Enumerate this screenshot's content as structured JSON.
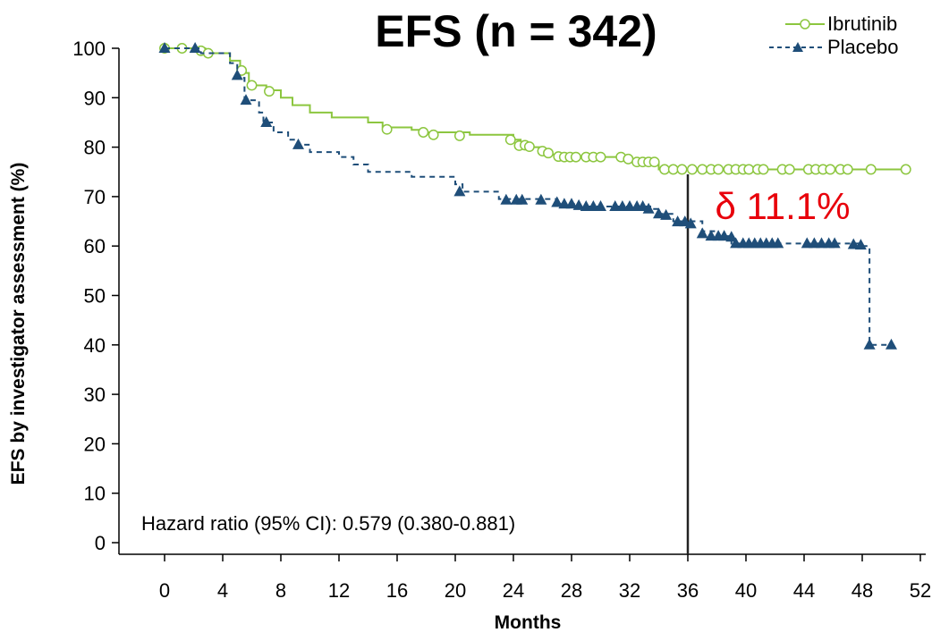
{
  "chart_data": {
    "type": "line",
    "title": "EFS (n = 342)",
    "xlabel": "Months",
    "ylabel": "EFS by investigator assessment (%)",
    "xlim": [
      0,
      52
    ],
    "ylim": [
      0,
      100
    ],
    "xticks": [
      0,
      4,
      8,
      12,
      16,
      20,
      24,
      28,
      32,
      36,
      40,
      44,
      48,
      52
    ],
    "yticks": [
      0,
      10,
      20,
      30,
      40,
      50,
      60,
      70,
      80,
      90,
      100
    ],
    "grid": false,
    "legend_position": "top-right",
    "colors": {
      "ibrutinib": "#8cc63f",
      "placebo": "#1f4e79",
      "delta": "#e8000b",
      "axis": "#000000"
    },
    "series": [
      {
        "name": "Ibrutinib",
        "style": "solid",
        "marker": "open-circle",
        "steps": [
          [
            0,
            100
          ],
          [
            2.8,
            99
          ],
          [
            4.5,
            97.5
          ],
          [
            5.2,
            95
          ],
          [
            5.8,
            92.5
          ],
          [
            7,
            91.5
          ],
          [
            8,
            90
          ],
          [
            8.8,
            88.5
          ],
          [
            10,
            87
          ],
          [
            11.5,
            86
          ],
          [
            14,
            85
          ],
          [
            15,
            84
          ],
          [
            17,
            83.5
          ],
          [
            18,
            83
          ],
          [
            21,
            82.5
          ],
          [
            24,
            81.5
          ],
          [
            24.5,
            81
          ],
          [
            25,
            80
          ],
          [
            26,
            79
          ],
          [
            26.5,
            78.5
          ],
          [
            27,
            78
          ],
          [
            31.5,
            77.5
          ],
          [
            32,
            77
          ],
          [
            34,
            75.5
          ],
          [
            51,
            75.5
          ]
        ],
        "censored": [
          [
            0,
            100
          ],
          [
            1.2,
            100
          ],
          [
            2.5,
            99.5
          ],
          [
            3,
            99
          ],
          [
            5.3,
            95.5
          ],
          [
            6,
            92.5
          ],
          [
            7.2,
            91.3
          ],
          [
            15.3,
            83.6
          ],
          [
            17.8,
            83
          ],
          [
            18.5,
            82.5
          ],
          [
            20.3,
            82.3
          ],
          [
            23.8,
            81.5
          ],
          [
            24.4,
            80.3
          ],
          [
            24.8,
            80.4
          ],
          [
            25.1,
            80.1
          ],
          [
            26,
            79.2
          ],
          [
            26.4,
            78.8
          ],
          [
            27.1,
            78.1
          ],
          [
            27.5,
            78
          ],
          [
            27.9,
            78
          ],
          [
            28.3,
            78
          ],
          [
            29,
            78
          ],
          [
            29.5,
            78
          ],
          [
            30,
            78
          ],
          [
            31.4,
            78
          ],
          [
            31.9,
            77.6
          ],
          [
            32.5,
            77
          ],
          [
            32.9,
            77
          ],
          [
            33.3,
            77
          ],
          [
            33.7,
            77
          ],
          [
            34.4,
            75.5
          ],
          [
            35,
            75.5
          ],
          [
            35.6,
            75.5
          ],
          [
            36.3,
            75.5
          ],
          [
            37,
            75.5
          ],
          [
            37.6,
            75.5
          ],
          [
            38.1,
            75.5
          ],
          [
            38.8,
            75.5
          ],
          [
            39.3,
            75.5
          ],
          [
            39.8,
            75.5
          ],
          [
            40.2,
            75.5
          ],
          [
            40.8,
            75.5
          ],
          [
            41.2,
            75.5
          ],
          [
            42.5,
            75.5
          ],
          [
            43,
            75.5
          ],
          [
            44.3,
            75.5
          ],
          [
            44.8,
            75.5
          ],
          [
            45.3,
            75.5
          ],
          [
            45.8,
            75.5
          ],
          [
            46.5,
            75.5
          ],
          [
            47,
            75.5
          ],
          [
            48.6,
            75.5
          ],
          [
            51,
            75.5
          ]
        ]
      },
      {
        "name": "Placebo",
        "style": "dashed",
        "marker": "filled-triangle",
        "steps": [
          [
            0,
            100
          ],
          [
            2.5,
            99
          ],
          [
            4.5,
            97
          ],
          [
            5,
            94
          ],
          [
            5.5,
            89.5
          ],
          [
            6.5,
            87
          ],
          [
            6.8,
            85
          ],
          [
            7.5,
            83
          ],
          [
            8.5,
            81.5
          ],
          [
            9.2,
            80.5
          ],
          [
            10,
            79
          ],
          [
            12,
            78
          ],
          [
            13,
            76.5
          ],
          [
            14,
            75
          ],
          [
            17,
            74
          ],
          [
            20,
            72.5
          ],
          [
            20.5,
            71
          ],
          [
            23,
            69.5
          ],
          [
            27,
            68.5
          ],
          [
            28.5,
            68
          ],
          [
            33.5,
            67.5
          ],
          [
            34,
            66.5
          ],
          [
            35,
            65
          ],
          [
            37,
            63
          ],
          [
            38,
            62
          ],
          [
            39,
            60.5
          ],
          [
            48,
            60
          ],
          [
            48.5,
            40
          ],
          [
            50,
            40
          ]
        ],
        "censored": [
          [
            0,
            100
          ],
          [
            2.1,
            100
          ],
          [
            5,
            94.5
          ],
          [
            5.6,
            89.5
          ],
          [
            7,
            85
          ],
          [
            9.2,
            80.5
          ],
          [
            20.3,
            71
          ],
          [
            23.5,
            69.3
          ],
          [
            24.2,
            69.3
          ],
          [
            24.6,
            69.3
          ],
          [
            25.9,
            69.3
          ],
          [
            27,
            68.8
          ],
          [
            27.5,
            68.5
          ],
          [
            28,
            68.5
          ],
          [
            28.5,
            68.2
          ],
          [
            29,
            68
          ],
          [
            29.5,
            68
          ],
          [
            30,
            68
          ],
          [
            31,
            68
          ],
          [
            31.5,
            68
          ],
          [
            32,
            68
          ],
          [
            32.5,
            68
          ],
          [
            32.9,
            68
          ],
          [
            33.3,
            67.5
          ],
          [
            34,
            66.5
          ],
          [
            34.5,
            66.2
          ],
          [
            35.3,
            64.9
          ],
          [
            35.8,
            64.9
          ],
          [
            36.2,
            64.5
          ],
          [
            37,
            62.5
          ],
          [
            37.6,
            62
          ],
          [
            38.1,
            62
          ],
          [
            38.5,
            62
          ],
          [
            39,
            61.8
          ],
          [
            39.3,
            60.5
          ],
          [
            39.8,
            60.5
          ],
          [
            40.2,
            60.5
          ],
          [
            40.6,
            60.5
          ],
          [
            41,
            60.5
          ],
          [
            41.4,
            60.5
          ],
          [
            41.8,
            60.5
          ],
          [
            42.2,
            60.5
          ],
          [
            44.2,
            60.5
          ],
          [
            44.7,
            60.5
          ],
          [
            45.2,
            60.5
          ],
          [
            45.7,
            60.5
          ],
          [
            46.1,
            60.5
          ],
          [
            47.4,
            60.3
          ],
          [
            47.9,
            60.2
          ],
          [
            48.5,
            40
          ],
          [
            50,
            40
          ]
        ]
      }
    ],
    "annotations": [
      {
        "text": "Hazard ratio (95% CI): 0.579 (0.380-0.881)"
      },
      {
        "text": "δ 11.1%"
      }
    ],
    "reference_line_x": 36
  }
}
